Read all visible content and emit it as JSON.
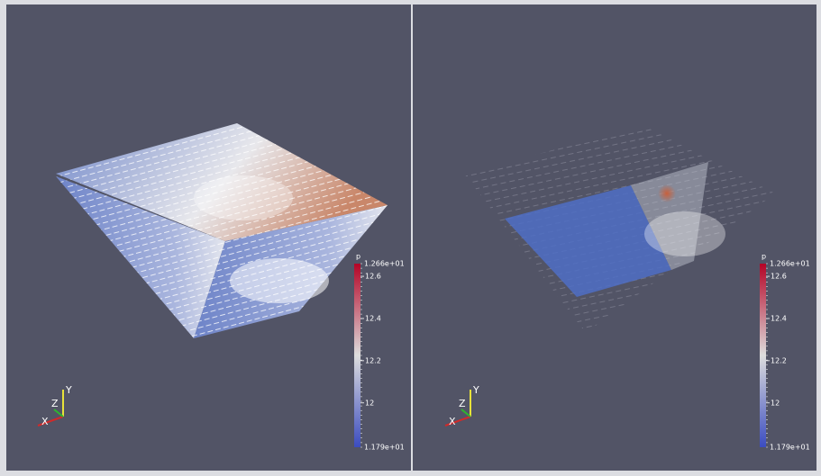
{
  "views": [
    {
      "colorbar": {
        "title": "p",
        "max_label": "1.266e+01",
        "min_label": "1.179e+01",
        "ticks": [
          "12.6",
          "12.4",
          "12.2",
          "12"
        ]
      },
      "axes": {
        "x": "X",
        "y": "Y",
        "z": "Z"
      }
    },
    {
      "colorbar": {
        "title": "p",
        "max_label": "1.266e+01",
        "min_label": "1.179e+01",
        "ticks": [
          "12.6",
          "12.4",
          "12.2",
          "12"
        ]
      },
      "axes": {
        "x": "X",
        "y": "Y",
        "z": "Z"
      }
    }
  ]
}
